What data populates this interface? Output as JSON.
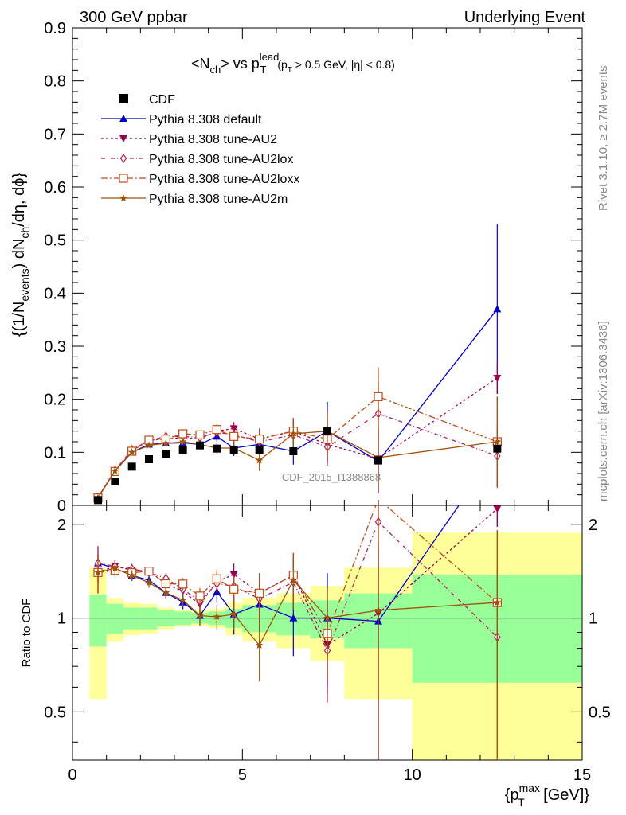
{
  "header": {
    "left": "300 GeV ppbar",
    "right": "Underlying Event"
  },
  "side_labels": {
    "rivet": "Rivet 3.1.10, ≥ 2.7M events",
    "mcplots": "mcplots.cern.ch [arXiv:1306.3436]"
  },
  "chart_data": {
    "type": "scatter",
    "title": "<N_ch> vs p_T^lead (p_T > 0.5 GeV, |η| < 0.8)",
    "title_parts": {
      "main": "<N",
      "sub_ch": "ch",
      "mid": "> vs p",
      "sup_lead": "lead",
      "sub_t": "T",
      "cut": "(p",
      "cut_sub": "T",
      "cut_rest": " > 0.5 GeV, |η| < 0.8)"
    },
    "watermark": "CDF_2015_I1388868",
    "xlabel": "{p_T^max [GeV]}",
    "xlabel_parts": {
      "a": "{p",
      "sup": "max",
      "sub": "T",
      "b": " [GeV]}"
    },
    "ylabel": "{(1/N_events) dN_ch/dη, dϕ}",
    "ylabel_parts": {
      "a": "{(1/N",
      "sub1": "events",
      "b": ") dN",
      "sub2": "ch",
      "c": "/dη, dϕ}"
    },
    "ratio_ylabel": "Ratio to CDF",
    "xlim": [
      0,
      15
    ],
    "ylim": [
      0,
      0.9
    ],
    "ratio_ylim": [
      0.35,
      2.3
    ],
    "x_ticks": [
      "0",
      "5",
      "10",
      "15"
    ],
    "y_ticks": [
      "0",
      "0.1",
      "0.2",
      "0.3",
      "0.4",
      "0.5",
      "0.6",
      "0.7",
      "0.8",
      "0.9"
    ],
    "ratio_ticks": [
      "0.5",
      "1",
      "2"
    ],
    "x": [
      0.75,
      1.25,
      1.75,
      2.25,
      2.75,
      3.25,
      3.75,
      4.25,
      4.75,
      5.5,
      6.5,
      7.5,
      9.0,
      12.5
    ],
    "bin_edges": [
      0.5,
      1.0,
      1.5,
      2.0,
      2.5,
      3.0,
      3.5,
      4.0,
      4.5,
      5.0,
      6.0,
      7.0,
      8.0,
      10.0,
      15.0
    ],
    "data": {
      "name": "CDF",
      "values": [
        0.01,
        0.045,
        0.073,
        0.087,
        0.097,
        0.105,
        0.113,
        0.107,
        0.105,
        0.104,
        0.102,
        0.14,
        0.085,
        0.107
      ]
    },
    "band_stat": [
      0.19,
      0.11,
      0.08,
      0.08,
      0.06,
      0.05,
      0.04,
      0.05,
      0.07,
      0.1,
      0.12,
      0.14,
      0.2,
      0.38
    ],
    "band_total": [
      0.45,
      0.16,
      0.12,
      0.11,
      0.08,
      0.06,
      0.06,
      0.07,
      0.12,
      0.16,
      0.2,
      0.27,
      0.45,
      0.88
    ],
    "series": [
      {
        "name": "Pythia 8.308 default",
        "color": "#0000cc",
        "dash": "",
        "marker": "triangle",
        "values": [
          0.015,
          0.065,
          0.1,
          0.115,
          0.117,
          0.118,
          0.115,
          0.13,
          0.108,
          0.115,
          0.102,
          0.14,
          0.083,
          0.37
        ],
        "errors": [
          0.002,
          0.003,
          0.004,
          0.004,
          0.005,
          0.006,
          0.008,
          0.01,
          0.015,
          0.02,
          0.025,
          0.055,
          0.06,
          0.16
        ]
      },
      {
        "name": "Pythia 8.308 tune-AU2",
        "color": "#99004d",
        "dash": "3,3",
        "marker": "triangle-down",
        "values": [
          0.014,
          0.066,
          0.104,
          0.123,
          0.125,
          0.128,
          0.125,
          0.14,
          0.145,
          0.125,
          0.14,
          0.115,
          0.088,
          0.24
        ],
        "errors": [
          0.002,
          0.003,
          0.004,
          0.004,
          0.005,
          0.006,
          0.008,
          0.01,
          0.012,
          0.02,
          0.025,
          0.035,
          0.06,
          0.03
        ]
      },
      {
        "name": "Pythia 8.308 tune-AU2lox",
        "color": "#b0205a",
        "dash": "5,3,1,3",
        "marker": "diamond",
        "values": [
          0.015,
          0.066,
          0.105,
          0.122,
          0.13,
          0.13,
          0.128,
          0.138,
          0.133,
          0.12,
          0.133,
          0.11,
          0.173,
          0.093
        ],
        "errors": [
          0.002,
          0.003,
          0.004,
          0.004,
          0.005,
          0.006,
          0.008,
          0.01,
          0.012,
          0.02,
          0.025,
          0.035,
          0.06,
          0.06
        ]
      },
      {
        "name": "Pythia 8.308 tune-AU2loxx",
        "color": "#c04a10",
        "dash": "8,3,2,3",
        "marker": "square-open",
        "values": [
          0.014,
          0.064,
          0.102,
          0.123,
          0.125,
          0.135,
          0.133,
          0.143,
          0.13,
          0.125,
          0.14,
          0.125,
          0.205,
          0.12
        ],
        "errors": [
          0.002,
          0.003,
          0.004,
          0.004,
          0.005,
          0.006,
          0.008,
          0.01,
          0.012,
          0.02,
          0.025,
          0.035,
          0.055,
          0.085
        ]
      },
      {
        "name": "Pythia 8.308 tune-AU2m",
        "color": "#a0520a",
        "dash": "",
        "marker": "star",
        "values": [
          0.014,
          0.065,
          0.1,
          0.113,
          0.117,
          0.12,
          0.115,
          0.108,
          0.108,
          0.085,
          0.135,
          0.14,
          0.09,
          0.12
        ],
        "errors": [
          0.002,
          0.003,
          0.004,
          0.004,
          0.005,
          0.006,
          0.008,
          0.01,
          0.012,
          0.02,
          0.025,
          0.035,
          0.06,
          0.085
        ]
      }
    ]
  }
}
